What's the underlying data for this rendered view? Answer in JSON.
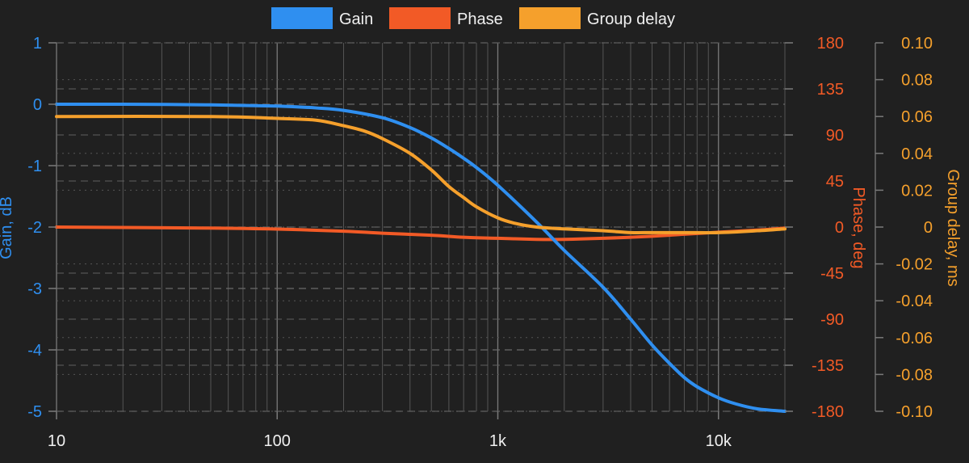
{
  "chart_data": {
    "type": "line",
    "x_scale": "log",
    "xlim": [
      10,
      20000
    ],
    "x_ticks": [
      {
        "value": 10,
        "label": "10"
      },
      {
        "value": 100,
        "label": "100"
      },
      {
        "value": 1000,
        "label": "1k"
      },
      {
        "value": 10000,
        "label": "10k"
      }
    ],
    "grid": true,
    "legend_placement": "top-center",
    "axes": {
      "gain": {
        "label": "Gain, dB",
        "side": "left",
        "color": "#2f8ff0",
        "ylim": [
          -5,
          1
        ],
        "ticks": [
          "1",
          "0",
          "-1",
          "-2",
          "-3",
          "-4",
          "-5"
        ],
        "tick_values": [
          1,
          0,
          -1,
          -2,
          -3,
          -4,
          -5
        ]
      },
      "phase": {
        "label": "Phase, deg",
        "side": "right",
        "color": "#f25a26",
        "ylim": [
          -180,
          180
        ],
        "ticks": [
          "180",
          "135",
          "90",
          "45",
          "0",
          "-45",
          "-90",
          "-135",
          "-180"
        ],
        "tick_values": [
          180,
          135,
          90,
          45,
          0,
          -45,
          -90,
          -135,
          -180
        ]
      },
      "delay": {
        "label": "Group delay, ms",
        "side": "right",
        "color": "#f5a02c",
        "ylim": [
          -0.1,
          0.1
        ],
        "ticks": [
          "0.10",
          "0.08",
          "0.06",
          "0.04",
          "0.02",
          "0",
          "-0.02",
          "-0.04",
          "-0.06",
          "-0.08",
          "-0.10"
        ],
        "tick_values": [
          0.1,
          0.08,
          0.06,
          0.04,
          0.02,
          0,
          -0.02,
          -0.04,
          -0.06,
          -0.08,
          -0.1
        ]
      }
    },
    "series": [
      {
        "name": "Gain",
        "axis": "gain",
        "color": "#2f8ff0",
        "x": [
          10,
          20,
          50,
          100,
          150,
          200,
          300,
          400,
          500,
          600,
          700,
          800,
          1000,
          1500,
          2000,
          3000,
          4000,
          5000,
          6000,
          7000,
          8000,
          10000,
          12000,
          15000,
          20000
        ],
        "y": [
          0,
          0,
          -0.01,
          -0.03,
          -0.06,
          -0.1,
          -0.22,
          -0.38,
          -0.55,
          -0.72,
          -0.88,
          -1.03,
          -1.32,
          -1.92,
          -2.38,
          -2.98,
          -3.5,
          -3.92,
          -4.22,
          -4.45,
          -4.6,
          -4.78,
          -4.88,
          -4.96,
          -5.0
        ]
      },
      {
        "name": "Phase",
        "axis": "phase",
        "color": "#f25a26",
        "x": [
          10,
          50,
          100,
          200,
          300,
          500,
          700,
          1000,
          1500,
          2000,
          3000,
          5000,
          7000,
          10000,
          15000,
          20000
        ],
        "y": [
          0,
          -1,
          -2,
          -4,
          -6,
          -8,
          -10,
          -11,
          -12,
          -12,
          -11,
          -9,
          -7,
          -5,
          -3,
          -1
        ]
      },
      {
        "name": "Group delay",
        "axis": "delay",
        "color": "#f5a02c",
        "x": [
          10,
          50,
          100,
          150,
          200,
          250,
          300,
          400,
          500,
          600,
          700,
          800,
          1000,
          1200,
          1500,
          2000,
          3000,
          4000,
          5000,
          7000,
          10000,
          15000,
          20000
        ],
        "y": [
          0.06,
          0.06,
          0.059,
          0.058,
          0.055,
          0.052,
          0.048,
          0.04,
          0.031,
          0.022,
          0.016,
          0.011,
          0.005,
          0.002,
          0.0,
          -0.001,
          -0.002,
          -0.003,
          -0.003,
          -0.003,
          -0.003,
          -0.002,
          -0.001
        ]
      }
    ]
  }
}
